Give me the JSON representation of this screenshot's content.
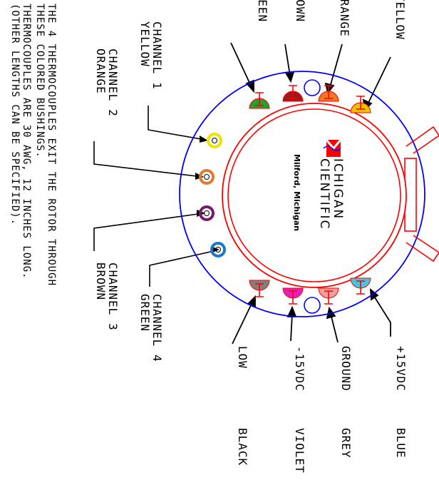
{
  "note": {
    "line1": "THE 4 THERMOCOUPLES EXIT THE ROTOR THROUGH",
    "line2": "THESE COLORED BUSHINGS.",
    "line3": "THERMOCOUPLES ARE 30 AWG, 12 INCHES LONG.",
    "line4": "(OTHER LENGTHS CAN BE SPECIFIED)."
  },
  "channels": [
    {
      "name": "CHANNEL 1",
      "color_name": "YELLOW",
      "color": "#f2e000"
    },
    {
      "name": "CHANNEL 2",
      "color_name": "ORANGE",
      "color": "#e07a30"
    },
    {
      "name": "CHANNEL 3",
      "color_name": "BROWN",
      "color": "#7a1a6a"
    },
    {
      "name": "CHANNEL 4",
      "color_name": "GREEN",
      "color": "#1a78c8"
    }
  ],
  "top_wires": [
    {
      "label": "GREEN",
      "color": "#22a030"
    },
    {
      "label": "BROWN",
      "color": "#a01818"
    },
    {
      "label": "ORANGE",
      "color": "#f07820"
    },
    {
      "label": "YELLOW",
      "color": "#f0c000"
    }
  ],
  "power_wires": [
    {
      "label": "+15VDC",
      "color_name": "BLUE",
      "color": "#40c8e0"
    },
    {
      "label": "GROUND",
      "color_name": "GREY",
      "color": "#f0a0a0"
    },
    {
      "label": "-15VDC",
      "color_name": "VIOLET",
      "color": "#e020c0"
    },
    {
      "label": "LOW",
      "color_name": "BLACK",
      "color": "#808080"
    }
  ],
  "logo": {
    "line1": "ICHIGAN",
    "line2": "CIENTIFIC",
    "city": "Milford, Michigan"
  },
  "colors": {
    "outer_ring": "#0000ff",
    "rotor": "#ff0000",
    "city_text": "#00e0ff"
  }
}
